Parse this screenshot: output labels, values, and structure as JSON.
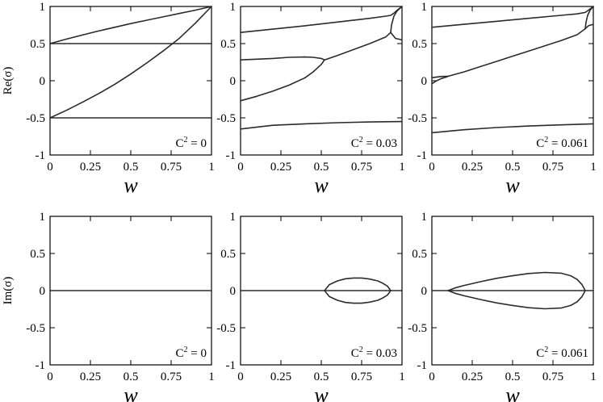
{
  "chart_data": [
    {
      "type": "line",
      "row": "top",
      "ylabel": "Re(σ)",
      "xlabel": "w",
      "xlim": [
        0,
        1
      ],
      "ylim": [
        -1,
        1
      ],
      "xticks": [
        "0",
        "0.25",
        "0.5",
        "0.75",
        "1"
      ],
      "yticks": [
        "-1",
        "-0.5",
        "0",
        "0.5",
        "1"
      ],
      "annotation": {
        "base": "C",
        "exp": "2",
        "rest": " = 0"
      },
      "grid": false,
      "series": [
        {
          "x": [
            0,
            0.1,
            0.2,
            0.3,
            0.4,
            0.5,
            0.6,
            0.7,
            0.8,
            0.9,
            1.0
          ],
          "y": [
            0.5,
            0.56,
            0.615,
            0.67,
            0.72,
            0.77,
            0.815,
            0.86,
            0.905,
            0.95,
            1.0
          ]
        },
        {
          "x": [
            0,
            1
          ],
          "y": [
            0.5,
            0.5
          ]
        },
        {
          "x": [
            0,
            0.1,
            0.2,
            0.3,
            0.4,
            0.5,
            0.6,
            0.7,
            0.8,
            0.9,
            1.0
          ],
          "y": [
            -0.5,
            -0.4,
            -0.29,
            -0.175,
            -0.05,
            0.09,
            0.24,
            0.4,
            0.57,
            0.775,
            1.0
          ]
        },
        {
          "x": [
            0,
            1
          ],
          "y": [
            -0.5,
            -0.5
          ]
        }
      ]
    },
    {
      "type": "line",
      "row": "top",
      "ylabel": "",
      "xlabel": "w",
      "xlim": [
        0,
        1
      ],
      "ylim": [
        -1,
        1
      ],
      "xticks": [
        "0",
        "0.25",
        "0.5",
        "0.75",
        "1"
      ],
      "yticks": [
        "-1",
        "-0.5",
        "0",
        "0.5",
        "1"
      ],
      "annotation": {
        "base": "C",
        "exp": "2",
        "rest": " = 0.03"
      },
      "grid": false,
      "series": [
        {
          "x": [
            0,
            0.2,
            0.4,
            0.6,
            0.8,
            0.9,
            0.93,
            0.95,
            0.97,
            1.0
          ],
          "y": [
            0.65,
            0.695,
            0.74,
            0.79,
            0.84,
            0.87,
            0.88,
            0.91,
            0.95,
            1.0
          ]
        },
        {
          "x": [
            0,
            0.1,
            0.2,
            0.3,
            0.4,
            0.45,
            0.5,
            0.52
          ],
          "y": [
            0.28,
            0.29,
            0.3,
            0.315,
            0.32,
            0.315,
            0.3,
            0.28
          ]
        },
        {
          "x": [
            0,
            0.1,
            0.2,
            0.3,
            0.4,
            0.45,
            0.5,
            0.52
          ],
          "y": [
            -0.27,
            -0.21,
            -0.14,
            -0.06,
            0.04,
            0.12,
            0.22,
            0.28
          ]
        },
        {
          "x": [
            0.52,
            0.6,
            0.7,
            0.8,
            0.9,
            0.93
          ],
          "y": [
            0.28,
            0.34,
            0.42,
            0.5,
            0.59,
            0.65
          ]
        },
        {
          "x": [
            0.93,
            0.935,
            0.95,
            0.97,
            1.0
          ],
          "y": [
            0.65,
            0.75,
            0.87,
            0.94,
            1.0
          ]
        },
        {
          "x": [
            0.93,
            0.96,
            1.0
          ],
          "y": [
            0.65,
            0.57,
            0.55
          ]
        },
        {
          "x": [
            0,
            0.2,
            0.4,
            0.6,
            0.8,
            1.0
          ],
          "y": [
            -0.65,
            -0.6,
            -0.58,
            -0.565,
            -0.555,
            -0.55
          ]
        }
      ]
    },
    {
      "type": "line",
      "row": "top",
      "ylabel": "",
      "xlabel": "w",
      "xlim": [
        0,
        1
      ],
      "ylim": [
        -1,
        1
      ],
      "xticks": [
        "0",
        "0.25",
        "0.5",
        "0.75",
        "1"
      ],
      "yticks": [
        "-1",
        "-0.5",
        "0",
        "0.5",
        "1"
      ],
      "annotation": {
        "base": "C",
        "exp": "2",
        "rest": " = 0.061"
      },
      "grid": false,
      "series": [
        {
          "x": [
            0,
            0.2,
            0.4,
            0.6,
            0.8,
            0.9,
            0.95,
            0.97,
            1.0
          ],
          "y": [
            0.72,
            0.76,
            0.8,
            0.84,
            0.88,
            0.9,
            0.92,
            0.95,
            1.0
          ]
        },
        {
          "x": [
            0.95,
            0.955,
            0.965,
            0.98,
            1.0
          ],
          "y": [
            0.7,
            0.79,
            0.88,
            0.95,
            1.0
          ]
        },
        {
          "x": [
            0.95,
            0.97,
            1.0
          ],
          "y": [
            0.7,
            0.74,
            0.76
          ]
        },
        {
          "x": [
            0.1,
            0.2,
            0.3,
            0.4,
            0.5,
            0.6,
            0.7,
            0.8,
            0.9,
            0.95
          ],
          "y": [
            0.06,
            0.12,
            0.19,
            0.26,
            0.33,
            0.4,
            0.47,
            0.54,
            0.62,
            0.7
          ]
        },
        {
          "x": [
            0,
            0.03,
            0.06,
            0.09,
            0.1
          ],
          "y": [
            0.04,
            0.05,
            0.058,
            0.06,
            0.06
          ]
        },
        {
          "x": [
            0,
            0.03,
            0.06,
            0.09,
            0.1
          ],
          "y": [
            -0.04,
            0.0,
            0.03,
            0.05,
            0.06
          ]
        },
        {
          "x": [
            0,
            0.2,
            0.4,
            0.6,
            0.8,
            1.0
          ],
          "y": [
            -0.7,
            -0.66,
            -0.63,
            -0.61,
            -0.595,
            -0.58
          ]
        }
      ]
    },
    {
      "type": "line",
      "row": "bottom",
      "ylabel": "Im(σ)",
      "xlabel": "w",
      "xlim": [
        0,
        1
      ],
      "ylim": [
        -1,
        1
      ],
      "xticks": [
        "0",
        "0.25",
        "0.5",
        "0.75",
        "1"
      ],
      "yticks": [
        "-1",
        "-0.5",
        "0",
        "0.5",
        "1"
      ],
      "annotation": {
        "base": "C",
        "exp": "2",
        "rest": " = 0"
      },
      "grid": false,
      "series": [
        {
          "x": [
            0,
            1
          ],
          "y": [
            0,
            0
          ]
        }
      ]
    },
    {
      "type": "line",
      "row": "bottom",
      "ylabel": "",
      "xlabel": "w",
      "xlim": [
        0,
        1
      ],
      "ylim": [
        -1,
        1
      ],
      "xticks": [
        "0",
        "0.25",
        "0.5",
        "0.75",
        "1"
      ],
      "yticks": [
        "-1",
        "-0.5",
        "0",
        "0.5",
        "1"
      ],
      "annotation": {
        "base": "C",
        "exp": "2",
        "rest": " = 0.03"
      },
      "grid": false,
      "series": [
        {
          "x": [
            0,
            1
          ],
          "y": [
            0,
            0
          ]
        },
        {
          "x": [
            0.52,
            0.55,
            0.6,
            0.65,
            0.7,
            0.75,
            0.8,
            0.85,
            0.88,
            0.91,
            0.93
          ],
          "y": [
            0,
            0.08,
            0.13,
            0.16,
            0.17,
            0.17,
            0.155,
            0.13,
            0.1,
            0.06,
            0
          ]
        },
        {
          "x": [
            0.52,
            0.55,
            0.6,
            0.65,
            0.7,
            0.75,
            0.8,
            0.85,
            0.88,
            0.91,
            0.93
          ],
          "y": [
            0,
            -0.08,
            -0.13,
            -0.16,
            -0.17,
            -0.17,
            -0.155,
            -0.13,
            -0.1,
            -0.06,
            0
          ]
        }
      ]
    },
    {
      "type": "line",
      "row": "bottom",
      "ylabel": "",
      "xlabel": "w",
      "xlim": [
        0,
        1
      ],
      "ylim": [
        -1,
        1
      ],
      "xticks": [
        "0",
        "0.25",
        "0.5",
        "0.75",
        "1"
      ],
      "yticks": [
        "-1",
        "-0.5",
        "0",
        "0.5",
        "1"
      ],
      "annotation": {
        "base": "C",
        "exp": "2",
        "rest": " = 0.061"
      },
      "grid": false,
      "series": [
        {
          "x": [
            0,
            1
          ],
          "y": [
            0,
            0
          ]
        },
        {
          "x": [
            0.1,
            0.15,
            0.2,
            0.3,
            0.4,
            0.5,
            0.6,
            0.7,
            0.8,
            0.86,
            0.9,
            0.93,
            0.95
          ],
          "y": [
            0,
            0.04,
            0.07,
            0.12,
            0.165,
            0.2,
            0.23,
            0.245,
            0.235,
            0.2,
            0.15,
            0.08,
            0
          ]
        },
        {
          "x": [
            0.1,
            0.15,
            0.2,
            0.3,
            0.4,
            0.5,
            0.6,
            0.7,
            0.8,
            0.86,
            0.9,
            0.93,
            0.95
          ],
          "y": [
            0,
            -0.04,
            -0.07,
            -0.12,
            -0.165,
            -0.2,
            -0.23,
            -0.245,
            -0.235,
            -0.2,
            -0.15,
            -0.08,
            0
          ]
        }
      ]
    }
  ]
}
